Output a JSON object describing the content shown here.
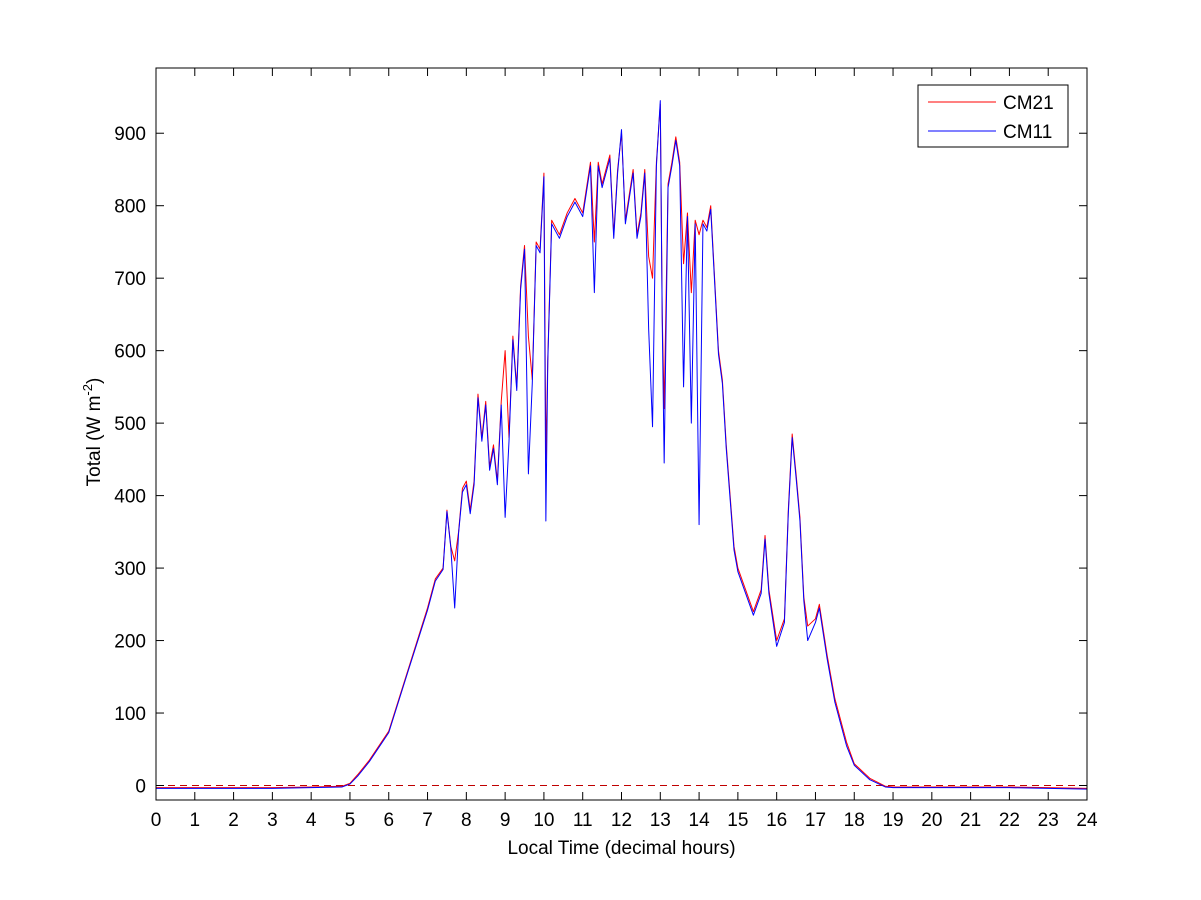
{
  "chart_data": {
    "type": "line",
    "xlabel": "Local Time (decimal hours)",
    "ylabel_prefix": "Total (W m",
    "ylabel_sup": "-2",
    "ylabel_suffix": ")",
    "xlim": [
      0,
      24
    ],
    "ylim": [
      -20,
      990
    ],
    "xticks": [
      0,
      1,
      2,
      3,
      4,
      5,
      6,
      7,
      8,
      9,
      10,
      11,
      12,
      13,
      14,
      15,
      16,
      17,
      18,
      19,
      20,
      21,
      22,
      23,
      24
    ],
    "yticks": [
      0,
      100,
      200,
      300,
      400,
      500,
      600,
      700,
      800,
      900
    ],
    "grid": false,
    "legend_position": "top-right",
    "reference_line": {
      "y": 0,
      "style": "dashed",
      "color": "#c00000"
    },
    "series": [
      {
        "name": "CM21",
        "color": "#ff0000",
        "points": [
          [
            0,
            -3
          ],
          [
            1,
            -3
          ],
          [
            2,
            -3
          ],
          [
            3,
            -3
          ],
          [
            4,
            -2
          ],
          [
            4.8,
            -1
          ],
          [
            5,
            3
          ],
          [
            5.2,
            15
          ],
          [
            5.5,
            35
          ],
          [
            6,
            75
          ],
          [
            6.5,
            160
          ],
          [
            7,
            245
          ],
          [
            7.2,
            285
          ],
          [
            7.4,
            300
          ],
          [
            7.5,
            380
          ],
          [
            7.6,
            330
          ],
          [
            7.7,
            310
          ],
          [
            7.8,
            350
          ],
          [
            7.9,
            410
          ],
          [
            8.0,
            420
          ],
          [
            8.1,
            380
          ],
          [
            8.2,
            420
          ],
          [
            8.3,
            540
          ],
          [
            8.4,
            480
          ],
          [
            8.5,
            530
          ],
          [
            8.6,
            440
          ],
          [
            8.7,
            470
          ],
          [
            8.8,
            420
          ],
          [
            8.9,
            530
          ],
          [
            9.0,
            600
          ],
          [
            9.1,
            480
          ],
          [
            9.2,
            620
          ],
          [
            9.3,
            550
          ],
          [
            9.4,
            690
          ],
          [
            9.5,
            745
          ],
          [
            9.6,
            620
          ],
          [
            9.7,
            560
          ],
          [
            9.8,
            750
          ],
          [
            9.9,
            740
          ],
          [
            10.0,
            845
          ],
          [
            10.05,
            450
          ],
          [
            10.1,
            590
          ],
          [
            10.2,
            780
          ],
          [
            10.4,
            760
          ],
          [
            10.6,
            790
          ],
          [
            10.8,
            810
          ],
          [
            11.0,
            790
          ],
          [
            11.2,
            860
          ],
          [
            11.3,
            750
          ],
          [
            11.4,
            860
          ],
          [
            11.5,
            830
          ],
          [
            11.7,
            870
          ],
          [
            11.8,
            760
          ],
          [
            11.9,
            850
          ],
          [
            12.0,
            900
          ],
          [
            12.1,
            780
          ],
          [
            12.3,
            850
          ],
          [
            12.4,
            760
          ],
          [
            12.5,
            790
          ],
          [
            12.6,
            850
          ],
          [
            12.7,
            730
          ],
          [
            12.8,
            700
          ],
          [
            12.9,
            860
          ],
          [
            13.0,
            940
          ],
          [
            13.05,
            650
          ],
          [
            13.1,
            520
          ],
          [
            13.2,
            830
          ],
          [
            13.3,
            860
          ],
          [
            13.4,
            895
          ],
          [
            13.5,
            860
          ],
          [
            13.6,
            720
          ],
          [
            13.7,
            790
          ],
          [
            13.8,
            680
          ],
          [
            13.9,
            780
          ],
          [
            14.0,
            760
          ],
          [
            14.1,
            780
          ],
          [
            14.2,
            770
          ],
          [
            14.3,
            800
          ],
          [
            14.4,
            700
          ],
          [
            14.5,
            600
          ],
          [
            14.6,
            560
          ],
          [
            14.7,
            470
          ],
          [
            14.8,
            400
          ],
          [
            14.9,
            330
          ],
          [
            15.0,
            300
          ],
          [
            15.2,
            270
          ],
          [
            15.4,
            240
          ],
          [
            15.6,
            270
          ],
          [
            15.7,
            345
          ],
          [
            15.8,
            270
          ],
          [
            16.0,
            200
          ],
          [
            16.2,
            230
          ],
          [
            16.3,
            380
          ],
          [
            16.4,
            485
          ],
          [
            16.5,
            430
          ],
          [
            16.6,
            370
          ],
          [
            16.7,
            260
          ],
          [
            16.8,
            220
          ],
          [
            17.0,
            230
          ],
          [
            17.1,
            250
          ],
          [
            17.3,
            180
          ],
          [
            17.5,
            120
          ],
          [
            17.8,
            60
          ],
          [
            18.0,
            30
          ],
          [
            18.4,
            10
          ],
          [
            18.8,
            -1
          ],
          [
            19,
            -2
          ],
          [
            20,
            -2
          ],
          [
            21,
            -2
          ],
          [
            22,
            -2
          ],
          [
            23,
            -3
          ],
          [
            24,
            -4
          ]
        ]
      },
      {
        "name": "CM11",
        "color": "#0000ff",
        "points": [
          [
            0,
            -4
          ],
          [
            1,
            -4
          ],
          [
            2,
            -4
          ],
          [
            3,
            -4
          ],
          [
            4,
            -3
          ],
          [
            4.8,
            -2
          ],
          [
            5,
            2
          ],
          [
            5.2,
            13
          ],
          [
            5.5,
            33
          ],
          [
            6,
            73
          ],
          [
            6.5,
            158
          ],
          [
            7,
            242
          ],
          [
            7.2,
            282
          ],
          [
            7.4,
            298
          ],
          [
            7.5,
            378
          ],
          [
            7.6,
            328
          ],
          [
            7.7,
            245
          ],
          [
            7.8,
            348
          ],
          [
            7.9,
            405
          ],
          [
            8.0,
            415
          ],
          [
            8.1,
            375
          ],
          [
            8.2,
            415
          ],
          [
            8.3,
            535
          ],
          [
            8.4,
            475
          ],
          [
            8.5,
            525
          ],
          [
            8.6,
            435
          ],
          [
            8.7,
            465
          ],
          [
            8.8,
            415
          ],
          [
            8.9,
            525
          ],
          [
            9.0,
            370
          ],
          [
            9.1,
            475
          ],
          [
            9.2,
            615
          ],
          [
            9.3,
            545
          ],
          [
            9.4,
            685
          ],
          [
            9.5,
            740
          ],
          [
            9.6,
            430
          ],
          [
            9.7,
            555
          ],
          [
            9.8,
            745
          ],
          [
            9.9,
            735
          ],
          [
            10.0,
            840
          ],
          [
            10.05,
            365
          ],
          [
            10.1,
            585
          ],
          [
            10.2,
            775
          ],
          [
            10.4,
            755
          ],
          [
            10.6,
            785
          ],
          [
            10.8,
            805
          ],
          [
            11.0,
            785
          ],
          [
            11.2,
            855
          ],
          [
            11.3,
            680
          ],
          [
            11.4,
            855
          ],
          [
            11.5,
            825
          ],
          [
            11.7,
            865
          ],
          [
            11.8,
            755
          ],
          [
            11.9,
            845
          ],
          [
            12.0,
            905
          ],
          [
            12.1,
            775
          ],
          [
            12.3,
            845
          ],
          [
            12.4,
            755
          ],
          [
            12.5,
            785
          ],
          [
            12.6,
            845
          ],
          [
            12.7,
            630
          ],
          [
            12.8,
            495
          ],
          [
            12.9,
            855
          ],
          [
            13.0,
            945
          ],
          [
            13.05,
            640
          ],
          [
            13.1,
            445
          ],
          [
            13.2,
            825
          ],
          [
            13.3,
            855
          ],
          [
            13.4,
            890
          ],
          [
            13.5,
            855
          ],
          [
            13.6,
            550
          ],
          [
            13.7,
            785
          ],
          [
            13.8,
            500
          ],
          [
            13.9,
            775
          ],
          [
            14.0,
            360
          ],
          [
            14.1,
            775
          ],
          [
            14.2,
            765
          ],
          [
            14.3,
            795
          ],
          [
            14.4,
            695
          ],
          [
            14.5,
            595
          ],
          [
            14.6,
            555
          ],
          [
            14.7,
            465
          ],
          [
            14.8,
            395
          ],
          [
            14.9,
            325
          ],
          [
            15.0,
            295
          ],
          [
            15.2,
            265
          ],
          [
            15.4,
            235
          ],
          [
            15.6,
            265
          ],
          [
            15.7,
            340
          ],
          [
            15.8,
            265
          ],
          [
            16.0,
            192
          ],
          [
            16.2,
            225
          ],
          [
            16.3,
            375
          ],
          [
            16.4,
            480
          ],
          [
            16.5,
            425
          ],
          [
            16.6,
            365
          ],
          [
            16.7,
            255
          ],
          [
            16.8,
            200
          ],
          [
            17.0,
            225
          ],
          [
            17.1,
            245
          ],
          [
            17.3,
            175
          ],
          [
            17.5,
            115
          ],
          [
            17.8,
            55
          ],
          [
            18.0,
            28
          ],
          [
            18.4,
            8
          ],
          [
            18.8,
            -2
          ],
          [
            19,
            -3
          ],
          [
            20,
            -3
          ],
          [
            21,
            -3
          ],
          [
            22,
            -3
          ],
          [
            23,
            -4
          ],
          [
            24,
            -5
          ]
        ]
      }
    ]
  }
}
